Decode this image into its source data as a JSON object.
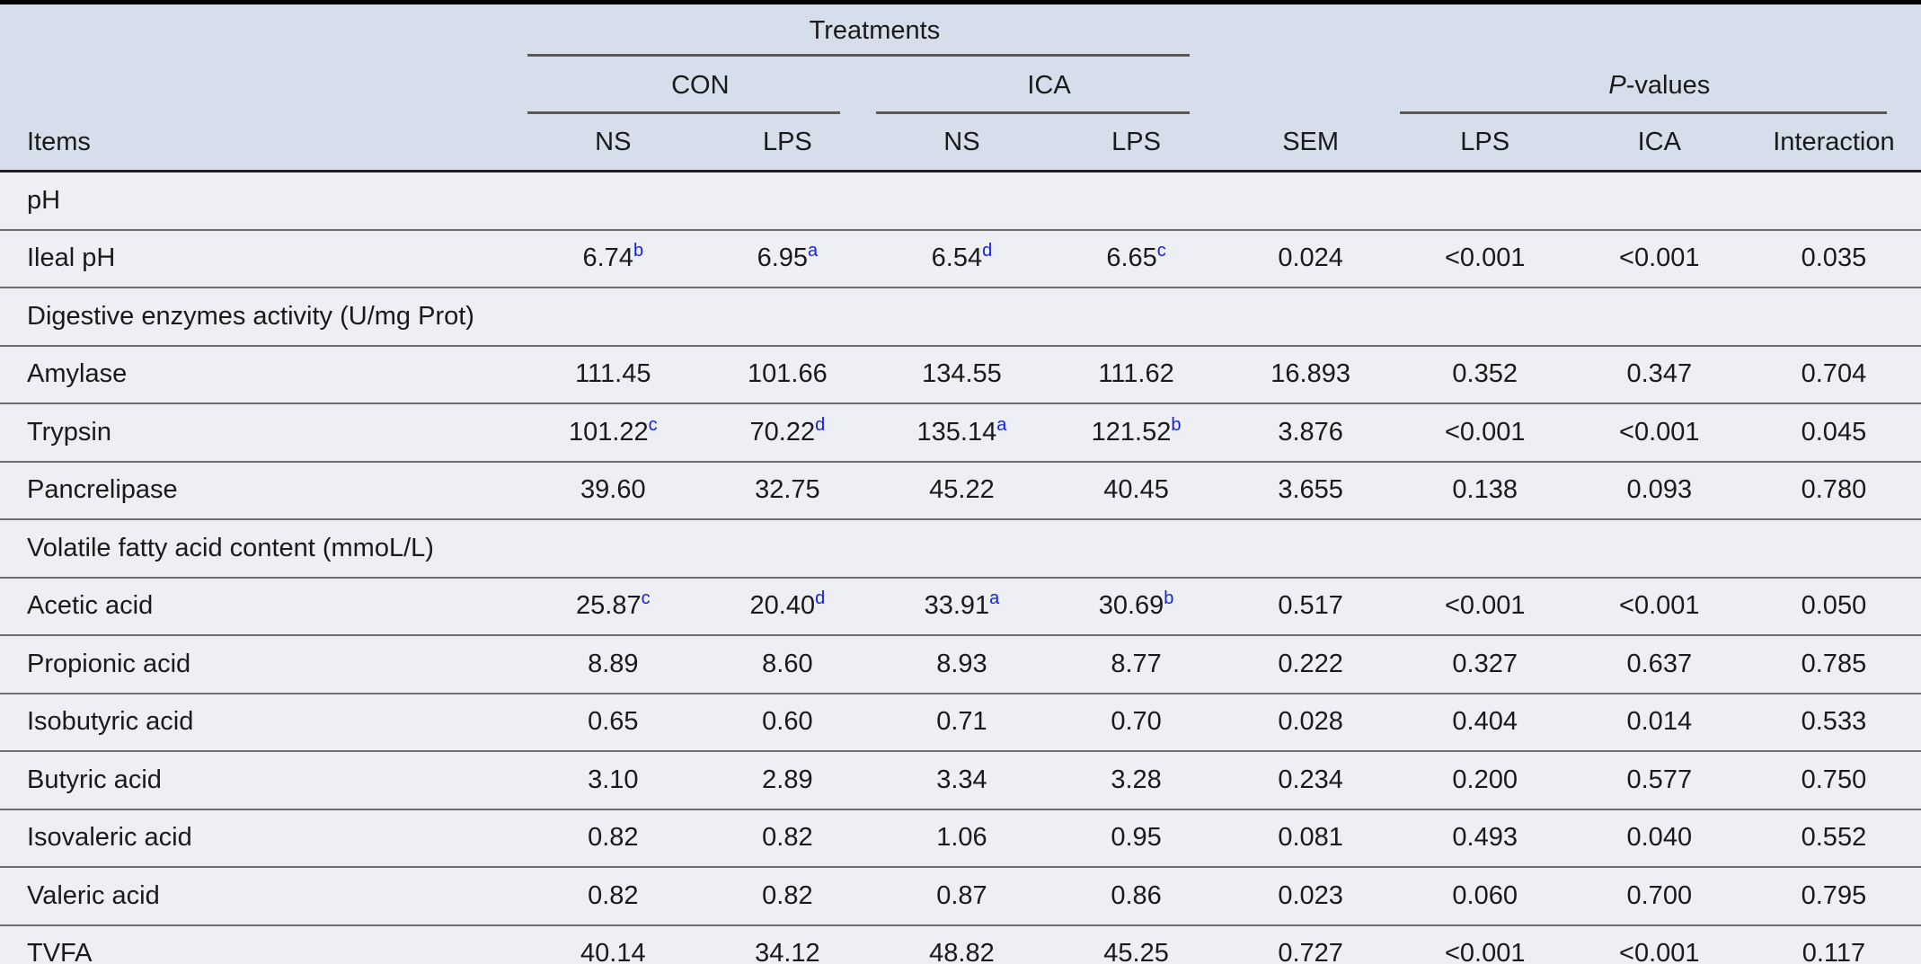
{
  "table": {
    "treatments_label": "Treatments",
    "con_label": "CON",
    "ica_label": "ICA",
    "pvalues": {
      "italic": "P",
      "rest": "-values"
    },
    "items_label": "Items",
    "sub_columns": [
      "NS",
      "LPS",
      "NS",
      "LPS",
      "SEM",
      "LPS",
      "ICA",
      "Interaction"
    ],
    "rows": [
      {
        "type": "section",
        "label": "pH"
      },
      {
        "type": "data",
        "label": "Ileal pH",
        "values": [
          {
            "v": "6.74",
            "sup": "b"
          },
          {
            "v": "6.95",
            "sup": "a"
          },
          {
            "v": "6.54",
            "sup": "d"
          },
          {
            "v": "6.65",
            "sup": "c"
          },
          "0.024",
          "<0.001",
          "<0.001",
          "0.035"
        ]
      },
      {
        "type": "section",
        "label": "Digestive enzymes activity (U/mg Prot)"
      },
      {
        "type": "data",
        "label": "Amylase",
        "values": [
          "111.45",
          "101.66",
          "134.55",
          "111.62",
          "16.893",
          "0.352",
          "0.347",
          "0.704"
        ]
      },
      {
        "type": "data",
        "label": "Trypsin",
        "values": [
          {
            "v": "101.22",
            "sup": "c"
          },
          {
            "v": "70.22",
            "sup": "d"
          },
          {
            "v": "135.14",
            "sup": "a"
          },
          {
            "v": "121.52",
            "sup": "b"
          },
          "3.876",
          "<0.001",
          "<0.001",
          "0.045"
        ]
      },
      {
        "type": "data",
        "label": "Pancrelipase",
        "values": [
          "39.60",
          "32.75",
          "45.22",
          "40.45",
          "3.655",
          "0.138",
          "0.093",
          "0.780"
        ]
      },
      {
        "type": "section",
        "label": "Volatile fatty acid content (mmoL/L)"
      },
      {
        "type": "data",
        "label": "Acetic acid",
        "values": [
          {
            "v": "25.87",
            "sup": "c"
          },
          {
            "v": "20.40",
            "sup": "d"
          },
          {
            "v": "33.91",
            "sup": "a"
          },
          {
            "v": "30.69",
            "sup": "b"
          },
          "0.517",
          "<0.001",
          "<0.001",
          "0.050"
        ]
      },
      {
        "type": "data",
        "label": "Propionic acid",
        "values": [
          "8.89",
          "8.60",
          "8.93",
          "8.77",
          "0.222",
          "0.327",
          "0.637",
          "0.785"
        ]
      },
      {
        "type": "data",
        "label": "Isobutyric acid",
        "values": [
          "0.65",
          "0.60",
          "0.71",
          "0.70",
          "0.028",
          "0.404",
          "0.014",
          "0.533"
        ]
      },
      {
        "type": "data",
        "label": "Butyric acid",
        "values": [
          "3.10",
          "2.89",
          "3.34",
          "3.28",
          "0.234",
          "0.200",
          "0.577",
          "0.750"
        ]
      },
      {
        "type": "data",
        "label": "Isovaleric acid",
        "values": [
          "0.82",
          "0.82",
          "1.06",
          "0.95",
          "0.081",
          "0.493",
          "0.040",
          "0.552"
        ]
      },
      {
        "type": "data",
        "label": "Valeric acid",
        "values": [
          "0.82",
          "0.82",
          "0.87",
          "0.86",
          "0.023",
          "0.060",
          "0.700",
          "0.795"
        ]
      },
      {
        "type": "data",
        "label": "TVFA",
        "values": [
          "40.14",
          "34.12",
          "48.82",
          "45.25",
          "0.727",
          "<0.001",
          "<0.001",
          "0.117"
        ]
      }
    ]
  },
  "colors": {
    "header_background": "#d6deec",
    "body_background": "#edeff4",
    "superscript_blue": "#0f1fe6",
    "row_rule_gray": "#6e6e6e",
    "header_rule_dark": "#1f1f1f",
    "outer_border_black": "#000000"
  }
}
